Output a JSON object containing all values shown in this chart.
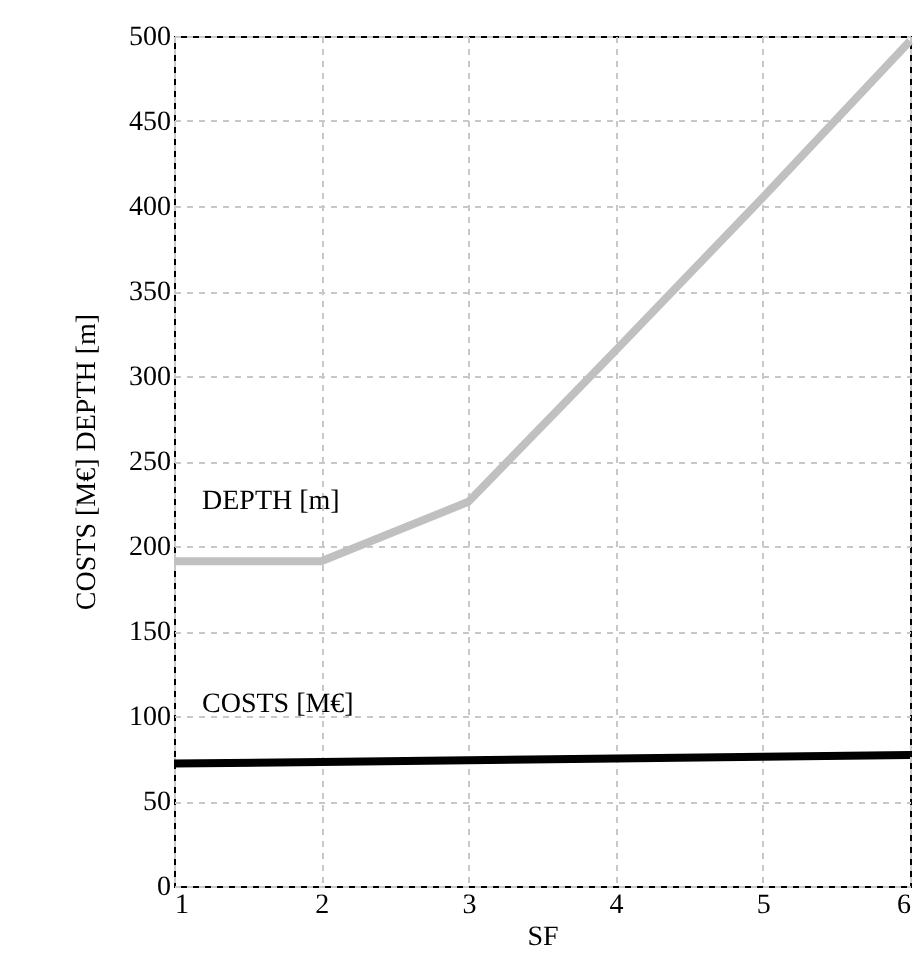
{
  "chart_data": {
    "type": "line",
    "xlabel": "SF",
    "ylabel": "COSTS [M€]          DEPTH [m]",
    "x": [
      1,
      2,
      3,
      4,
      5,
      6
    ],
    "series": [
      {
        "name": "DEPTH [m]",
        "color": "#c0c0c0",
        "values": [
          191,
          191,
          226,
          315,
          405,
          497
        ]
      },
      {
        "name": "COSTS [M€]",
        "color": "#000000",
        "values": [
          72,
          73,
          74,
          75,
          76,
          77
        ]
      }
    ],
    "xlim": [
      1,
      6
    ],
    "xticks": [
      1,
      2,
      3,
      4,
      5,
      6
    ],
    "ylim": [
      0,
      500
    ],
    "yticks": [
      0,
      50,
      100,
      150,
      200,
      250,
      300,
      350,
      400,
      450,
      500
    ],
    "grid": true,
    "legend": false,
    "marker": "none",
    "line_style": "solid"
  }
}
